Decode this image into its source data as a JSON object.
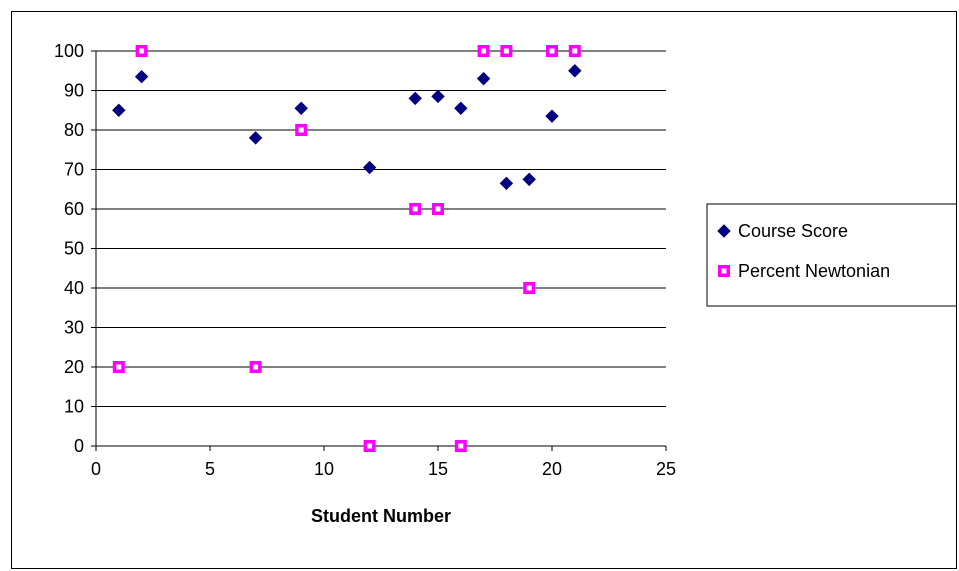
{
  "chart_data": {
    "type": "scatter",
    "title": "",
    "xlabel": "Student Number",
    "ylabel": "",
    "xlim": [
      0,
      25
    ],
    "ylim": [
      0,
      100
    ],
    "x_ticks": [
      0,
      5,
      10,
      15,
      20,
      25
    ],
    "y_ticks": [
      0,
      10,
      20,
      30,
      40,
      50,
      60,
      70,
      80,
      90,
      100
    ],
    "grid": "horizontal",
    "legend_position": "right",
    "series": [
      {
        "name": "Course Score",
        "marker": "diamond",
        "color": "#000080",
        "points": [
          {
            "x": 1,
            "y": 85
          },
          {
            "x": 2,
            "y": 93.5
          },
          {
            "x": 7,
            "y": 78
          },
          {
            "x": 9,
            "y": 85.5
          },
          {
            "x": 12,
            "y": 70.5
          },
          {
            "x": 14,
            "y": 88
          },
          {
            "x": 15,
            "y": 88.5
          },
          {
            "x": 16,
            "y": 85.5
          },
          {
            "x": 17,
            "y": 93
          },
          {
            "x": 18,
            "y": 66.5
          },
          {
            "x": 19,
            "y": 67.5
          },
          {
            "x": 20,
            "y": 83.5
          },
          {
            "x": 21,
            "y": 95
          }
        ]
      },
      {
        "name": "Percent Newtonian",
        "marker": "square",
        "color": "#ff00ff",
        "points": [
          {
            "x": 1,
            "y": 20
          },
          {
            "x": 2,
            "y": 100
          },
          {
            "x": 7,
            "y": 20
          },
          {
            "x": 9,
            "y": 80
          },
          {
            "x": 12,
            "y": 0
          },
          {
            "x": 14,
            "y": 60
          },
          {
            "x": 15,
            "y": 60
          },
          {
            "x": 16,
            "y": 0
          },
          {
            "x": 17,
            "y": 100
          },
          {
            "x": 18,
            "y": 100
          },
          {
            "x": 19,
            "y": 40
          },
          {
            "x": 20,
            "y": 100
          },
          {
            "x": 21,
            "y": 100
          }
        ]
      }
    ]
  }
}
